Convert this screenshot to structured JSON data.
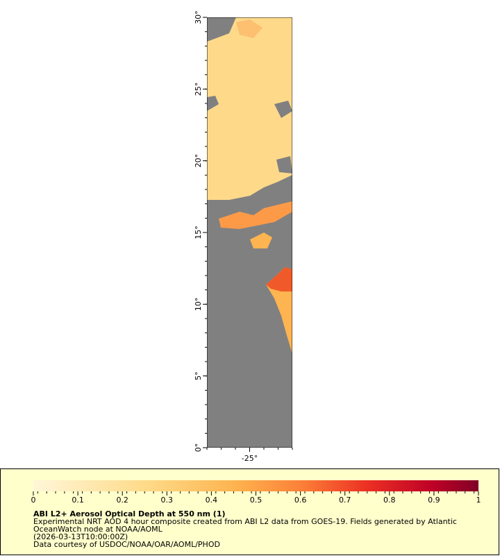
{
  "map": {
    "xlim": [
      -28,
      -22
    ],
    "ylim": [
      0,
      30
    ],
    "yticks": [
      {
        "value": 0,
        "label": "0°"
      },
      {
        "value": 5,
        "label": "5°"
      },
      {
        "value": 10,
        "label": "10°"
      },
      {
        "value": 15,
        "label": "15°"
      },
      {
        "value": 20,
        "label": "20°"
      },
      {
        "value": 25,
        "label": "25°"
      },
      {
        "value": 30,
        "label": "30°"
      }
    ],
    "xticks": [
      {
        "value": -25,
        "label": "-25°"
      }
    ]
  },
  "legend": {
    "colorbar_lim": [
      0,
      1
    ],
    "colorbar_ticks": [
      0,
      0.1,
      0.2,
      0.3,
      0.4,
      0.5,
      0.6,
      0.7,
      0.8,
      0.9,
      1
    ],
    "title": "ABI L2+ Aerosol Optical Depth at 550 nm (1)",
    "lines": [
      "Experimental NRT AOD 4 hour composite created from ABI L2 data from GOES-19. Fields generated by Atlantic",
      "OceanWatch node at NOAA/AOML",
      "(2026-03-13T10:00:00Z)",
      "Data courtesy of USDOC/NOAA/OAR/AOML/PHOD"
    ]
  }
}
